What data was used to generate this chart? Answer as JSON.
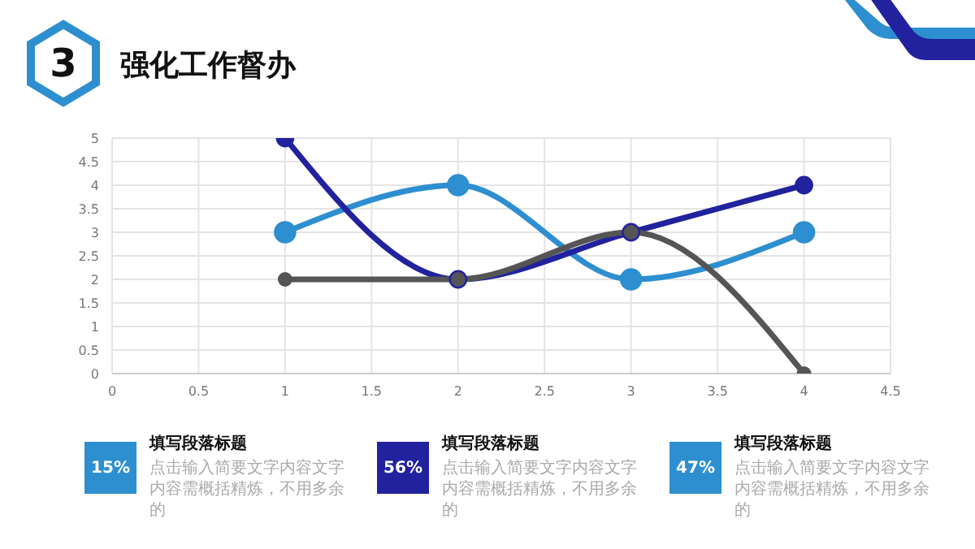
{
  "chart_data": {
    "type": "line",
    "title": "强化工作督办",
    "x": [
      1,
      2,
      3,
      4
    ],
    "series": [
      {
        "color": "#2e8fd0",
        "values": [
          3,
          4,
          2,
          3
        ]
      },
      {
        "color": "#22229e",
        "values": [
          5,
          2,
          3,
          4
        ]
      },
      {
        "color": "#555555",
        "values": [
          2,
          2,
          3,
          0
        ]
      }
    ],
    "xlim": [
      0,
      4.5
    ],
    "xticks": [
      0,
      0.5,
      1,
      1.5,
      2,
      2.5,
      3,
      3.5,
      4,
      4.5
    ],
    "ylim": [
      0,
      5
    ],
    "yticks": [
      0,
      0.5,
      1,
      1.5,
      2,
      2.5,
      3,
      3.5,
      4,
      4.5,
      5
    ],
    "grid": true,
    "marker": "circle",
    "line_style": "solid",
    "annotations": [
      "3",
      "15%",
      "填写段落标题",
      "点击输入简要文字内容文字内容需概括精炼，不用多余的",
      "56%",
      "填写段落标题",
      "点击输入简要文字内容文字内容需概括精炼，不用多余的",
      "47%",
      "填写段落标题",
      "点击输入简要文字内容文字内容需概括精炼，不用多余的"
    ]
  }
}
